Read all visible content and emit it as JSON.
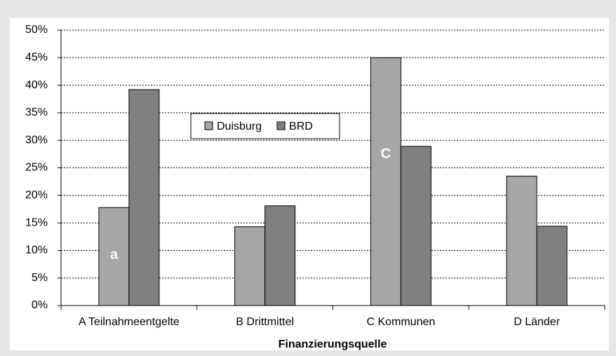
{
  "chart_data": {
    "type": "bar",
    "x_label": "Finanzierungsquelle",
    "categories": [
      "A Teilnahmeentgelte",
      "B Drittmittel",
      "C Kommunen",
      "D Länder"
    ],
    "series": [
      {
        "name": "Duisburg",
        "color": "#a6a6a6",
        "values": [
          17.8,
          14.3,
          45,
          23.5
        ]
      },
      {
        "name": "BRD",
        "color": "#808080",
        "values": [
          39.2,
          18.1,
          28.9,
          14.4
        ]
      }
    ],
    "annotations": [
      "a",
      "C"
    ],
    "ylim": [
      0,
      50
    ],
    "yticks": [
      {
        "value": 0,
        "label": "0%"
      },
      {
        "value": 5,
        "label": "5%"
      },
      {
        "value": 10,
        "label": "10%"
      },
      {
        "value": 15,
        "label": "15%"
      },
      {
        "value": 20,
        "label": "20%"
      },
      {
        "value": 25,
        "label": "25%"
      },
      {
        "value": 30,
        "label": "30%"
      },
      {
        "value": 35,
        "label": "35%"
      },
      {
        "value": 40,
        "label": "40%"
      },
      {
        "value": 45,
        "label": "45%"
      },
      {
        "value": 50,
        "label": "50%"
      }
    ],
    "grid": true
  }
}
